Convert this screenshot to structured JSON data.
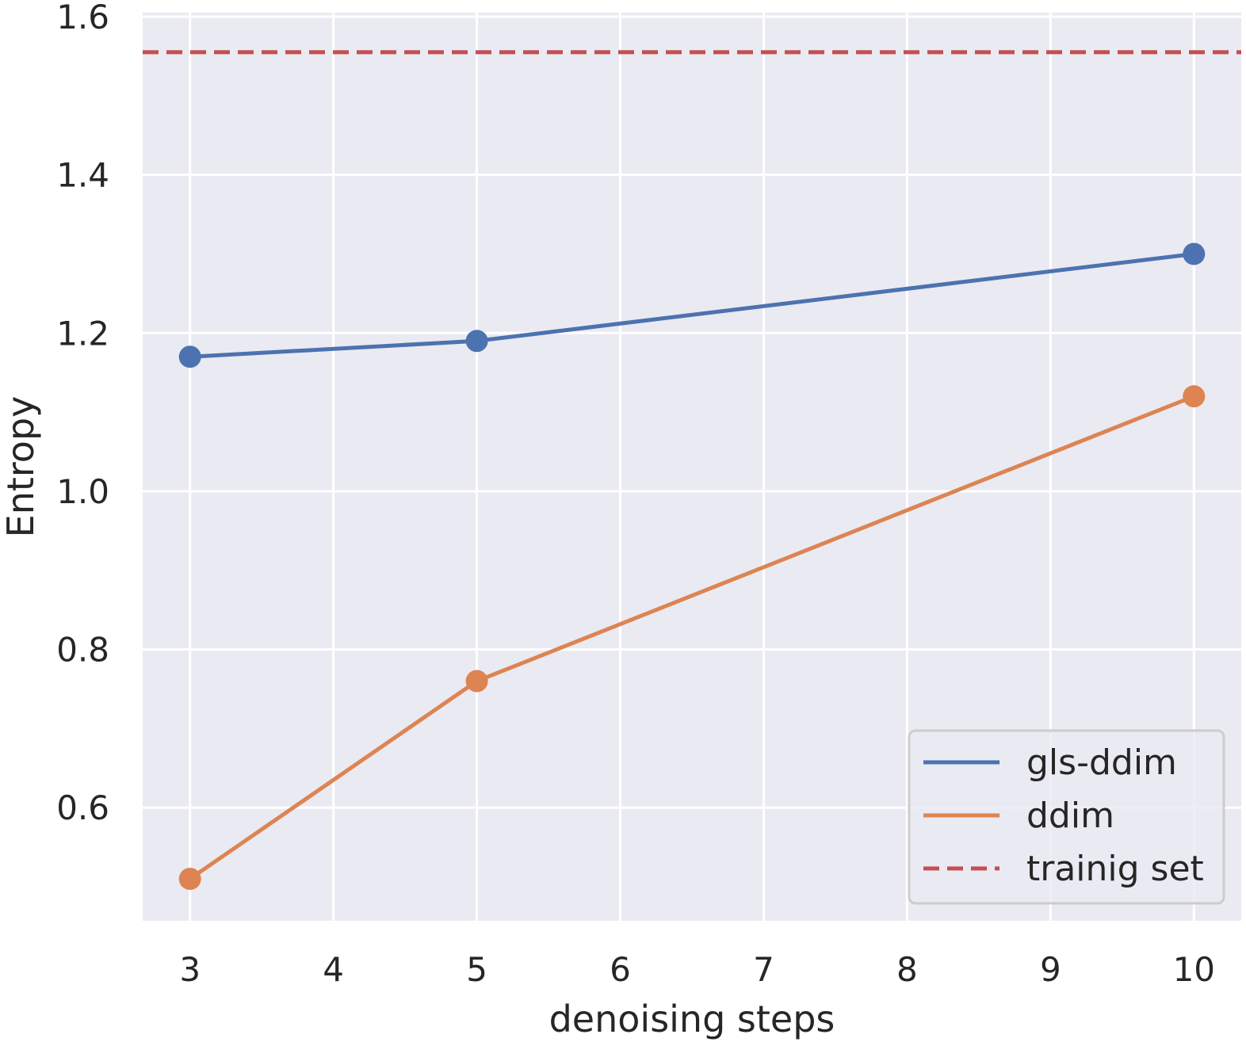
{
  "chart_data": {
    "type": "line",
    "xlabel": "denoising steps",
    "ylabel": "Entropy",
    "xlim": [
      2.67,
      10.33
    ],
    "ylim": [
      0.457,
      1.605
    ],
    "xticks": [
      3,
      4,
      5,
      6,
      7,
      8,
      9,
      10
    ],
    "xtick_labels": [
      "3",
      "4",
      "5",
      "6",
      "7",
      "8",
      "9",
      "10"
    ],
    "yticks": [
      0.6,
      0.8,
      1.0,
      1.2,
      1.4,
      1.6
    ],
    "ytick_labels": [
      "0.6",
      "0.8",
      "1.0",
      "1.2",
      "1.4",
      "1.6"
    ],
    "grid": true,
    "legend_position": "bottom-right",
    "series": [
      {
        "name": "gls-ddim",
        "color": "#4c72b0",
        "style": "solid-with-markers",
        "x": [
          3,
          5,
          10
        ],
        "y": [
          1.17,
          1.19,
          1.3
        ]
      },
      {
        "name": "ddim",
        "color": "#dd8452",
        "style": "solid-with-markers",
        "x": [
          3,
          5,
          10
        ],
        "y": [
          0.51,
          0.76,
          1.12
        ]
      }
    ],
    "reference_lines": [
      {
        "name": "trainig set",
        "color": "#c44e52",
        "style": "dashed",
        "y": 1.555
      }
    ]
  }
}
